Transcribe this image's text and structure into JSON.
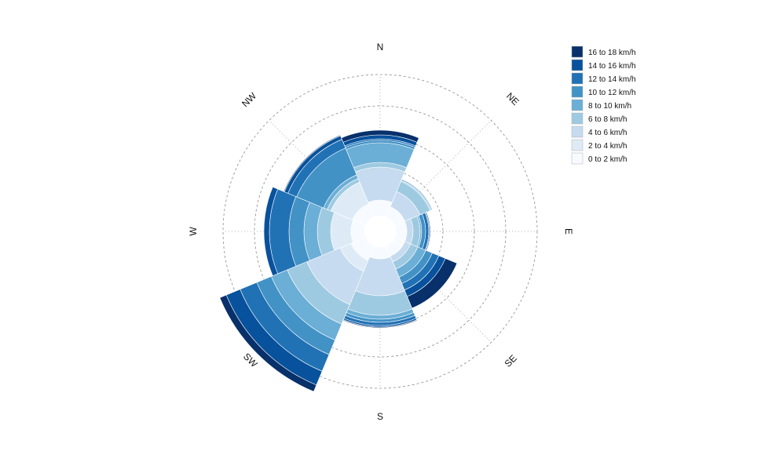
{
  "chart_data": {
    "type": "windrose",
    "directions": [
      "N",
      "NE",
      "E",
      "SE",
      "S",
      "SW",
      "W",
      "NW"
    ],
    "bins": [
      "0 to 2 km/h",
      "2 to 4 km/h",
      "4 to 6 km/h",
      "6 to 8 km/h",
      "8 to 10 km/h",
      "10 to 12 km/h",
      "12 to 14 km/h",
      "14 to 16 km/h",
      "16 to 18 km/h"
    ],
    "colors": [
      "#f7fbff",
      "#deebf7",
      "#c6dbef",
      "#9ecae1",
      "#6baed6",
      "#4292c6",
      "#2171b5",
      "#08519c",
      "#08306b"
    ],
    "series": [
      {
        "direction": "N",
        "cumulative_radius": [
          40,
          40,
          82,
          88,
          113,
          116,
          118,
          123,
          129
        ]
      },
      {
        "direction": "NE",
        "cumulative_radius": [
          34,
          34,
          55,
          69,
          70,
          71,
          72,
          72,
          72
        ]
      },
      {
        "direction": "E",
        "cumulative_radius": [
          34,
          34,
          42,
          51,
          53,
          58,
          62,
          63,
          64
        ]
      },
      {
        "direction": "SE",
        "cumulative_radius": [
          34,
          34,
          42,
          52,
          63,
          72,
          81,
          90,
          106
        ]
      },
      {
        "direction": "S",
        "cumulative_radius": [
          35,
          35,
          82,
          107,
          112,
          116,
          120,
          122,
          123
        ]
      },
      {
        "direction": "SW",
        "cumulative_radius": [
          40,
          55,
          101,
          128,
          150,
          170,
          193,
          212,
          221
        ]
      },
      {
        "direction": "W",
        "cumulative_radius": [
          37,
          63,
          63,
          80,
          97,
          116,
          141,
          148,
          148
        ]
      },
      {
        "direction": "NW",
        "cumulative_radius": [
          38,
          68,
          68,
          73,
          78,
          115,
          127,
          132,
          133
        ]
      }
    ],
    "radial_rings": [
      80,
      120,
      160,
      200
    ],
    "legend_position": "top-right",
    "direction_labels": [
      "N",
      "NE",
      "E",
      "SE",
      "S",
      "SW",
      "W",
      "NW"
    ]
  }
}
